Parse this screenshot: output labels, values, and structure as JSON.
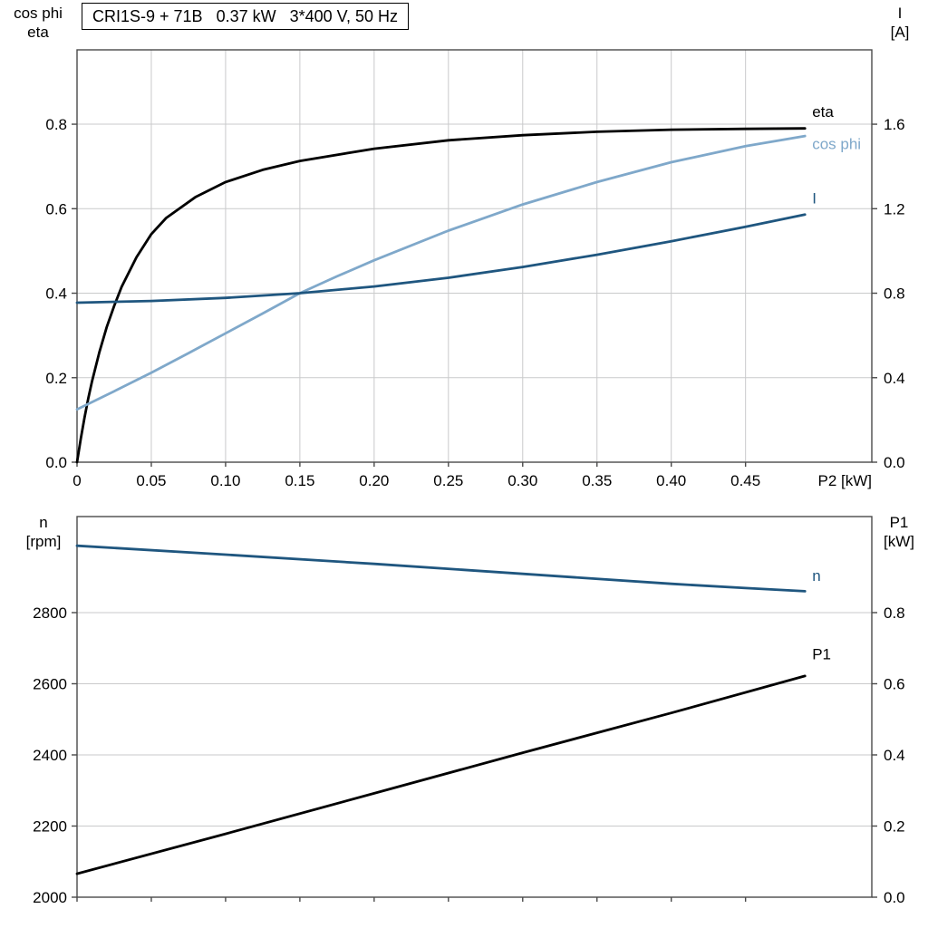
{
  "title_box": {
    "text": "CRI1S-9 + 71B   0.37 kW   3*400 V, 50 Hz"
  },
  "colors": {
    "black": "#000000",
    "dark_blue": "#1f567f",
    "light_blue": "#7fa8ca",
    "grid": "#c9cacb",
    "axis": "#4a4a4a"
  },
  "chart_data": [
    {
      "type": "line",
      "title": "CRI1S-9 + 71B   0.37 kW   3*400 V, 50 Hz",
      "x_axis": {
        "label": "P2 [kW]",
        "min": 0,
        "max": 0.535,
        "ticks": [
          0,
          0.05,
          0.1,
          0.15,
          0.2,
          0.25,
          0.3,
          0.35,
          0.4,
          0.45
        ],
        "tick_labels": [
          "0",
          "0.05",
          "0.10",
          "0.15",
          "0.20",
          "0.25",
          "0.30",
          "0.35",
          "0.40",
          "0.45"
        ]
      },
      "y_left": {
        "label_lines": [
          "cos phi",
          "eta"
        ],
        "min": 0,
        "max": 0.976,
        "ticks": [
          0,
          0.2,
          0.4,
          0.6,
          0.8
        ],
        "tick_labels": [
          "0.0",
          "0.2",
          "0.4",
          "0.6",
          "0.8"
        ]
      },
      "y_right": {
        "label_lines": [
          "I",
          "[A]"
        ],
        "min": 0,
        "max": 1.952,
        "ticks": [
          0,
          0.4,
          0.8,
          1.2,
          1.6
        ],
        "tick_labels": [
          "0.0",
          "0.4",
          "0.8",
          "1.2",
          "1.6"
        ]
      },
      "series": [
        {
          "name": "eta",
          "label": "eta",
          "axis": "left",
          "color_key": "black",
          "x": [
            0,
            0.0025,
            0.005,
            0.0075,
            0.01,
            0.015,
            0.02,
            0.025,
            0.03,
            0.04,
            0.05,
            0.06,
            0.08,
            0.1,
            0.125,
            0.15,
            0.2,
            0.25,
            0.3,
            0.35,
            0.4,
            0.45,
            0.49
          ],
          "y": [
            0,
            0.055,
            0.105,
            0.15,
            0.19,
            0.26,
            0.32,
            0.37,
            0.415,
            0.485,
            0.54,
            0.578,
            0.628,
            0.663,
            0.692,
            0.713,
            0.742,
            0.762,
            0.774,
            0.782,
            0.787,
            0.789,
            0.79
          ]
        },
        {
          "name": "cos-phi",
          "label": "cos phi",
          "axis": "left",
          "color_key": "light_blue",
          "x": [
            0,
            0.025,
            0.05,
            0.075,
            0.1,
            0.125,
            0.15,
            0.175,
            0.2,
            0.25,
            0.3,
            0.35,
            0.4,
            0.45,
            0.49
          ],
          "y": [
            0.125,
            0.168,
            0.212,
            0.258,
            0.305,
            0.352,
            0.4,
            0.44,
            0.478,
            0.548,
            0.61,
            0.663,
            0.71,
            0.748,
            0.772
          ]
        },
        {
          "name": "current",
          "label": "I",
          "axis": "right",
          "color_key": "dark_blue",
          "x": [
            0,
            0.05,
            0.1,
            0.15,
            0.2,
            0.25,
            0.3,
            0.35,
            0.4,
            0.45,
            0.49
          ],
          "y": [
            0.755,
            0.763,
            0.778,
            0.8,
            0.832,
            0.873,
            0.924,
            0.982,
            1.046,
            1.114,
            1.172
          ]
        }
      ]
    },
    {
      "type": "line",
      "title": "",
      "x_axis": {
        "label": "",
        "min": 0,
        "max": 0.535,
        "ticks": [
          0,
          0.05,
          0.1,
          0.15,
          0.2,
          0.25,
          0.3,
          0.35,
          0.4,
          0.45
        ],
        "tick_labels": []
      },
      "y_left": {
        "label_lines": [
          "n",
          "[rpm]"
        ],
        "min": 2000,
        "max": 3070,
        "ticks": [
          2000,
          2200,
          2400,
          2600,
          2800
        ],
        "tick_labels": [
          "2000",
          "2200",
          "2400",
          "2600",
          "2800"
        ]
      },
      "y_right": {
        "label_lines": [
          "P1",
          "[kW]"
        ],
        "min": 0,
        "max": 1.07,
        "ticks": [
          0,
          0.2,
          0.4,
          0.6,
          0.8
        ],
        "tick_labels": [
          "0.0",
          "0.2",
          "0.4",
          "0.6",
          "0.8"
        ]
      },
      "series": [
        {
          "name": "speed",
          "label": "n",
          "axis": "left",
          "color_key": "dark_blue",
          "x": [
            0,
            0.1,
            0.2,
            0.3,
            0.4,
            0.45,
            0.49
          ],
          "y": [
            2988,
            2963,
            2937,
            2909,
            2881,
            2869,
            2860
          ]
        },
        {
          "name": "p1",
          "label": "P1",
          "axis": "right",
          "color_key": "black",
          "x": [
            0,
            0.1,
            0.2,
            0.3,
            0.4,
            0.49
          ],
          "y": [
            0.066,
            0.178,
            0.292,
            0.406,
            0.518,
            0.622
          ]
        }
      ]
    }
  ]
}
